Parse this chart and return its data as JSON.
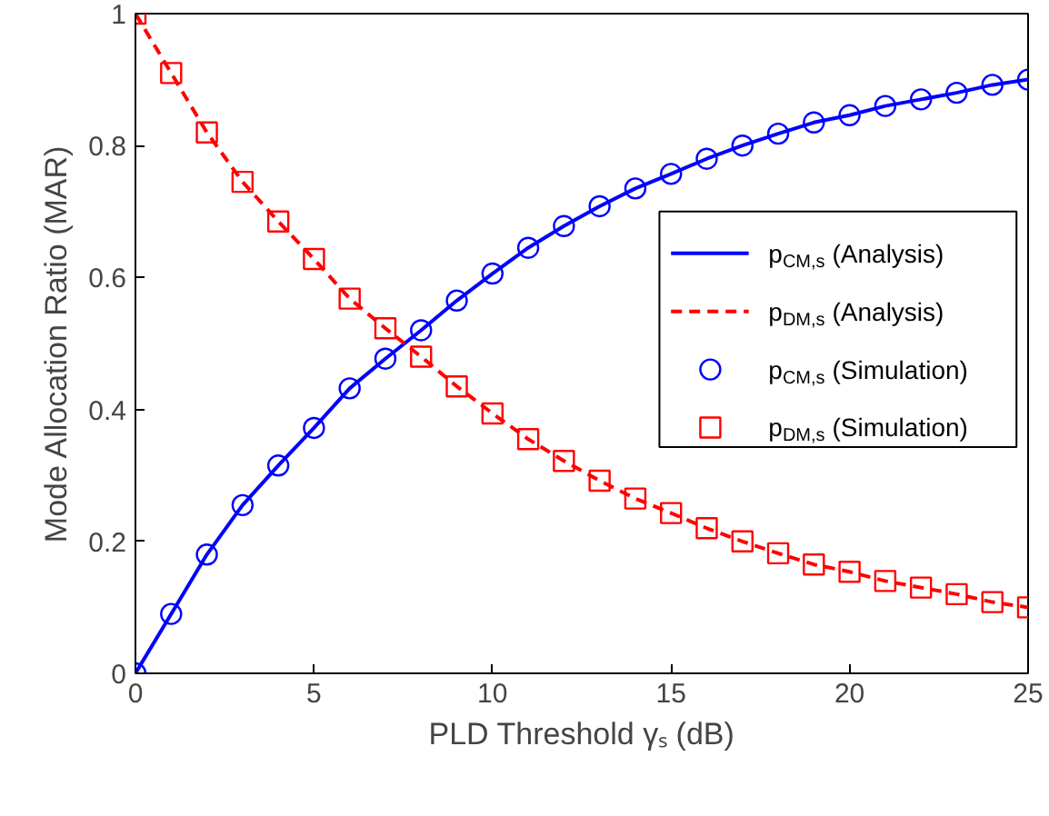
{
  "chart_data": {
    "type": "line",
    "xlabel": "PLD Threshold γₛ (dB)",
    "ylabel": "Mode Allocation Ratio (MAR)",
    "x": [
      0,
      1,
      2,
      3,
      4,
      5,
      6,
      7,
      8,
      9,
      10,
      11,
      12,
      13,
      14,
      15,
      16,
      17,
      18,
      19,
      20,
      21,
      22,
      23,
      24,
      25
    ],
    "xlim": [
      0,
      25
    ],
    "xticks": [
      0,
      5,
      10,
      15,
      20,
      25
    ],
    "ylim": [
      0,
      1
    ],
    "yticks": [
      0,
      0.2,
      0.4,
      0.6,
      0.8,
      1
    ],
    "grid": false,
    "legend": "right",
    "series": [
      {
        "name": "p$_{CM,s}$ (Analysis)",
        "line_style": "solid",
        "color": "#0000ff",
        "values": [
          0,
          0.09,
          0.18,
          0.255,
          0.315,
          0.372,
          0.432,
          0.477,
          0.52,
          0.565,
          0.606,
          0.645,
          0.678,
          0.708,
          0.735,
          0.757,
          0.78,
          0.8,
          0.818,
          0.835,
          0.846,
          0.86,
          0.87,
          0.88,
          0.892,
          0.9
        ]
      },
      {
        "name": "p$_{DM,s}$ (Analysis)",
        "line_style": "dashed",
        "color": "#ff0000",
        "values": [
          1,
          0.91,
          0.82,
          0.745,
          0.685,
          0.628,
          0.568,
          0.523,
          0.48,
          0.435,
          0.394,
          0.355,
          0.322,
          0.292,
          0.265,
          0.243,
          0.22,
          0.2,
          0.182,
          0.165,
          0.154,
          0.14,
          0.13,
          0.12,
          0.108,
          0.1
        ]
      },
      {
        "name": "p$_{CM,s}$ (Simulation)",
        "type": "scatter",
        "marker": "circle",
        "color": "#0000ff",
        "values": [
          0,
          0.09,
          0.18,
          0.255,
          0.315,
          0.372,
          0.432,
          0.477,
          0.52,
          0.565,
          0.606,
          0.645,
          0.678,
          0.708,
          0.735,
          0.757,
          0.78,
          0.8,
          0.818,
          0.835,
          0.846,
          0.86,
          0.87,
          0.88,
          0.892,
          0.9
        ]
      },
      {
        "name": "p$_{DM,s}$ (Simulation)",
        "type": "scatter",
        "marker": "square",
        "color": "#ff0000",
        "values": [
          1,
          0.91,
          0.82,
          0.745,
          0.685,
          0.628,
          0.568,
          0.523,
          0.48,
          0.435,
          0.394,
          0.355,
          0.322,
          0.292,
          0.265,
          0.243,
          0.22,
          0.2,
          0.182,
          0.165,
          0.154,
          0.14,
          0.13,
          0.12,
          0.108,
          0.1
        ]
      }
    ]
  }
}
